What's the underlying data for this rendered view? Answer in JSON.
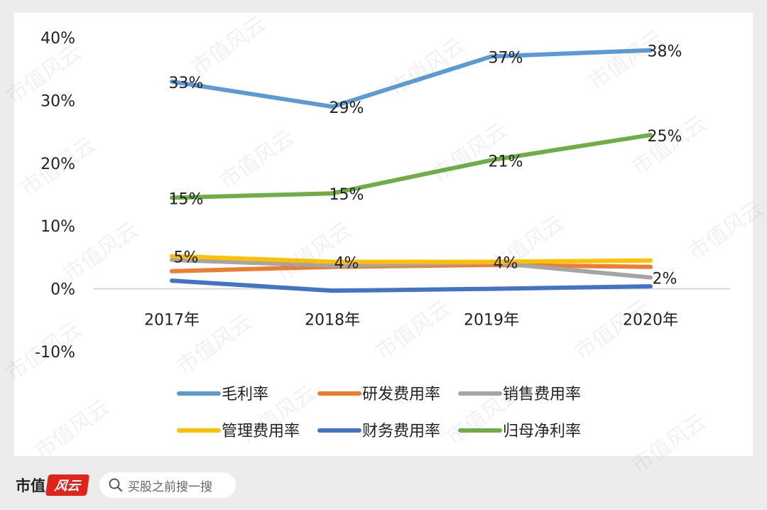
{
  "chart_data": {
    "type": "line",
    "categories": [
      "2017年",
      "2018年",
      "2019年",
      "2020年"
    ],
    "ylim": [
      -10,
      40
    ],
    "yticks": [
      "40%",
      "30%",
      "20%",
      "10%",
      "0%",
      "-10%"
    ],
    "ytick_values": [
      40,
      30,
      20,
      10,
      0,
      -10
    ],
    "series": [
      {
        "name": "毛利率",
        "color": "#5b9bd5",
        "values": [
          33,
          29,
          37,
          38
        ],
        "labels": [
          "33%",
          "29%",
          "37%",
          "38%"
        ]
      },
      {
        "name": "研发费用率",
        "color": "#ed7d31",
        "values": [
          2.8,
          3.5,
          3.8,
          3.5
        ],
        "labels": []
      },
      {
        "name": "销售费用率",
        "color": "#a5a5a5",
        "values": [
          4.6,
          3.7,
          4.2,
          1.8
        ],
        "labels": [
          "",
          "",
          "",
          "2%"
        ]
      },
      {
        "name": "管理费用率",
        "color": "#ffc000",
        "values": [
          5.2,
          4.3,
          4.3,
          4.5
        ],
        "labels": [
          "5%",
          "4%",
          "4%",
          ""
        ]
      },
      {
        "name": "财务费用率",
        "color": "#4472c4",
        "values": [
          1.3,
          -0.3,
          0.0,
          0.4
        ],
        "labels": []
      },
      {
        "name": "归母净利率",
        "color": "#70ad47",
        "values": [
          14.5,
          15.2,
          20.5,
          24.5
        ],
        "labels": [
          "15%",
          "15%",
          "21%",
          "25%"
        ]
      }
    ],
    "legend_position": "bottom",
    "grid": false
  },
  "footer": {
    "brand": "市值",
    "brand_logo": "风云",
    "search_placeholder": "买股之前搜一搜"
  },
  "watermark": "市值风云"
}
